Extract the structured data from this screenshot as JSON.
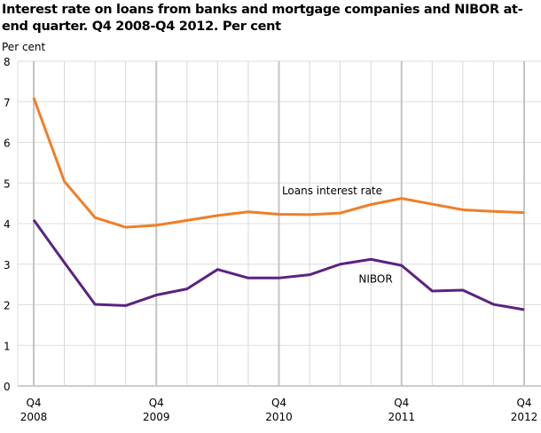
{
  "chart_data": {
    "type": "line",
    "title": "Interest rate on loans from banks and mortgage companies and NIBOR at-end quarter. Q4 2008-Q4 2012. Per cent",
    "ylabel": "Per cent",
    "xlabel": "",
    "ylim": [
      0,
      8
    ],
    "yticks": [
      0,
      1,
      2,
      3,
      4,
      5,
      6,
      7,
      8
    ],
    "grid": true,
    "x": [
      "Q4 2008",
      "Q1 2009",
      "Q2 2009",
      "Q3 2009",
      "Q4 2009",
      "Q1 2010",
      "Q2 2010",
      "Q3 2010",
      "Q4 2010",
      "Q1 2011",
      "Q2 2011",
      "Q3 2011",
      "Q4 2011",
      "Q1 2012",
      "Q2 2012",
      "Q3 2012",
      "Q4 2012"
    ],
    "xtick_labels": [
      {
        "index": 0,
        "quarter": "Q4",
        "year": "2008"
      },
      {
        "index": 4,
        "quarter": "Q4",
        "year": "2009"
      },
      {
        "index": 8,
        "quarter": "Q4",
        "year": "2010"
      },
      {
        "index": 12,
        "quarter": "Q4",
        "year": "2011"
      },
      {
        "index": 16,
        "quarter": "Q4",
        "year": "2012"
      }
    ],
    "series": [
      {
        "name": "Loans interest rate",
        "color": "#f07e26",
        "values": [
          7.1,
          5.04,
          4.15,
          3.91,
          3.96,
          4.08,
          4.2,
          4.29,
          4.23,
          4.22,
          4.26,
          4.47,
          4.62,
          4.48,
          4.34,
          4.3,
          4.27
        ],
        "label_at": {
          "index": 8.1,
          "value": 4.72
        }
      },
      {
        "name": "NIBOR",
        "color": "#5b2282",
        "values": [
          4.09,
          3.04,
          2.01,
          1.98,
          2.24,
          2.39,
          2.87,
          2.66,
          2.66,
          2.74,
          3.0,
          3.12,
          2.97,
          2.34,
          2.36,
          2.01,
          1.88
        ],
        "label_at": {
          "index": 10.6,
          "value": 2.55
        }
      }
    ]
  }
}
